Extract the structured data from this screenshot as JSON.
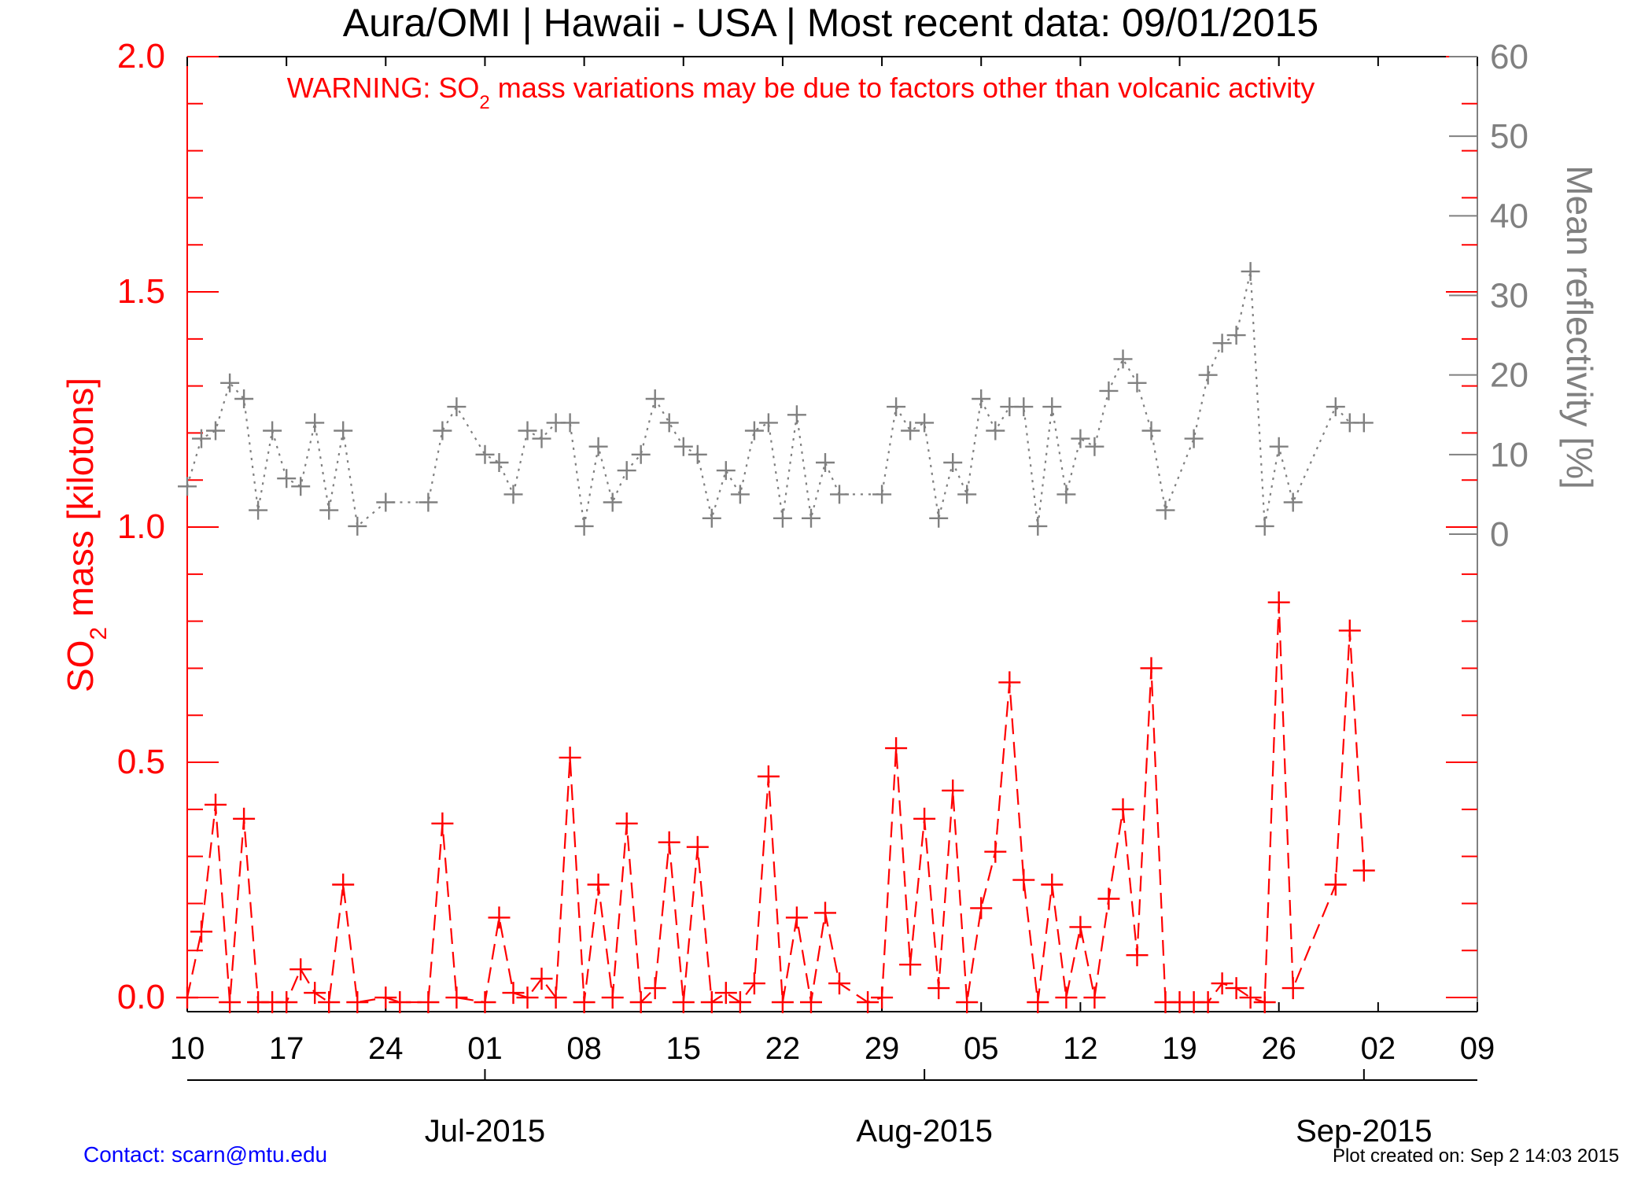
{
  "footer": {
    "contact": "Contact: scarn@mtu.edu",
    "created": "Plot created on: Sep  2 14:03 2015"
  },
  "chart_data": {
    "type": "line",
    "title": "Aura/OMI | Hawaii - USA | Most recent data: 09/01/2015",
    "warning": {
      "prefix": "WARNING: SO",
      "subscript": "2",
      "suffix": " mass variations may be due to factors other than volcanic activity",
      "color": "#ff0000"
    },
    "ylabel_left": {
      "prefix": "SO",
      "subscript": "2",
      "suffix": " mass [kilotons]",
      "color": "#ff0000"
    },
    "ylabel_right": {
      "text": "Mean reflectivity [%]",
      "color": "#808080"
    },
    "x_axis": {
      "range": [
        "2015-06-10",
        "2015-09-09"
      ],
      "ticks": [
        {
          "date": "2015-06-10",
          "label": "10"
        },
        {
          "date": "2015-06-17",
          "label": "17"
        },
        {
          "date": "2015-06-24",
          "label": "24"
        },
        {
          "date": "2015-07-01",
          "label": "01"
        },
        {
          "date": "2015-07-08",
          "label": "08"
        },
        {
          "date": "2015-07-15",
          "label": "15"
        },
        {
          "date": "2015-07-22",
          "label": "22"
        },
        {
          "date": "2015-07-29",
          "label": "29"
        },
        {
          "date": "2015-08-05",
          "label": "05"
        },
        {
          "date": "2015-08-12",
          "label": "12"
        },
        {
          "date": "2015-08-19",
          "label": "19"
        },
        {
          "date": "2015-08-26",
          "label": "26"
        },
        {
          "date": "2015-09-02",
          "label": "02"
        },
        {
          "date": "2015-09-09",
          "label": "09"
        }
      ],
      "months": [
        {
          "date": "2015-07-01",
          "label": "Jul-2015"
        },
        {
          "date": "2015-08-01",
          "label": "Aug-2015"
        },
        {
          "date": "2015-09-01",
          "label": "Sep-2015"
        }
      ]
    },
    "y_left": {
      "range": [
        -0.03,
        2.0
      ],
      "ticks": [
        {
          "v": 0.0,
          "label": "0.0"
        },
        {
          "v": 0.5,
          "label": "0.5"
        },
        {
          "v": 1.0,
          "label": "1.0"
        },
        {
          "v": 1.5,
          "label": "1.5"
        },
        {
          "v": 2.0,
          "label": "2.0"
        }
      ],
      "minor_step": 0.1
    },
    "y_right": {
      "range": [
        -60,
        60
      ],
      "ticks": [
        {
          "v": 0,
          "label": "0"
        },
        {
          "v": 10,
          "label": "10"
        },
        {
          "v": 20,
          "label": "20"
        },
        {
          "v": 30,
          "label": "30"
        },
        {
          "v": 40,
          "label": "40"
        },
        {
          "v": 50,
          "label": "50"
        },
        {
          "v": 60,
          "label": "60"
        }
      ]
    },
    "series": [
      {
        "id": "so2",
        "axis": "left",
        "color": "#ff0000",
        "line_style": "dashed",
        "marker": "+",
        "points": [
          [
            "2015-06-10",
            0.0
          ],
          [
            "2015-06-11",
            0.14
          ],
          [
            "2015-06-12",
            0.41
          ],
          [
            "2015-06-13",
            -0.01
          ],
          [
            "2015-06-14",
            0.38
          ],
          [
            "2015-06-15",
            -0.01
          ],
          [
            "2015-06-16",
            -0.01
          ],
          [
            "2015-06-17",
            -0.01
          ],
          [
            "2015-06-18",
            0.06
          ],
          [
            "2015-06-19",
            0.01
          ],
          [
            "2015-06-20",
            -0.01
          ],
          [
            "2015-06-21",
            0.24
          ],
          [
            "2015-06-22",
            -0.01
          ],
          [
            "2015-06-24",
            0.0
          ],
          [
            "2015-06-25",
            -0.01
          ],
          [
            "2015-06-27",
            -0.01
          ],
          [
            "2015-06-28",
            0.37
          ],
          [
            "2015-06-29",
            0.0
          ],
          [
            "2015-07-01",
            -0.01
          ],
          [
            "2015-07-02",
            0.17
          ],
          [
            "2015-07-03",
            0.01
          ],
          [
            "2015-07-04",
            0.0
          ],
          [
            "2015-07-05",
            0.04
          ],
          [
            "2015-07-06",
            0.0
          ],
          [
            "2015-07-07",
            0.51
          ],
          [
            "2015-07-08",
            -0.01
          ],
          [
            "2015-07-09",
            0.24
          ],
          [
            "2015-07-10",
            0.0
          ],
          [
            "2015-07-11",
            0.37
          ],
          [
            "2015-07-12",
            -0.01
          ],
          [
            "2015-07-13",
            0.02
          ],
          [
            "2015-07-14",
            0.33
          ],
          [
            "2015-07-15",
            -0.01
          ],
          [
            "2015-07-16",
            0.32
          ],
          [
            "2015-07-17",
            -0.01
          ],
          [
            "2015-07-18",
            0.01
          ],
          [
            "2015-07-19",
            -0.01
          ],
          [
            "2015-07-20",
            0.03
          ],
          [
            "2015-07-21",
            0.47
          ],
          [
            "2015-07-22",
            -0.01
          ],
          [
            "2015-07-23",
            0.17
          ],
          [
            "2015-07-24",
            -0.01
          ],
          [
            "2015-07-25",
            0.18
          ],
          [
            "2015-07-26",
            0.03
          ],
          [
            "2015-07-28",
            -0.01
          ],
          [
            "2015-07-29",
            0.0
          ],
          [
            "2015-07-30",
            0.53
          ],
          [
            "2015-07-31",
            0.07
          ],
          [
            "2015-08-01",
            0.38
          ],
          [
            "2015-08-02",
            0.02
          ],
          [
            "2015-08-03",
            0.44
          ],
          [
            "2015-08-04",
            -0.01
          ],
          [
            "2015-08-05",
            0.19
          ],
          [
            "2015-08-06",
            0.31
          ],
          [
            "2015-08-07",
            0.67
          ],
          [
            "2015-08-08",
            0.25
          ],
          [
            "2015-08-09",
            -0.01
          ],
          [
            "2015-08-10",
            0.24
          ],
          [
            "2015-08-11",
            0.0
          ],
          [
            "2015-08-12",
            0.15
          ],
          [
            "2015-08-13",
            0.0
          ],
          [
            "2015-08-14",
            0.21
          ],
          [
            "2015-08-15",
            0.4
          ],
          [
            "2015-08-16",
            0.09
          ],
          [
            "2015-08-17",
            0.7
          ],
          [
            "2015-08-18",
            -0.01
          ],
          [
            "2015-08-19",
            -0.01
          ],
          [
            "2015-08-20",
            -0.01
          ],
          [
            "2015-08-21",
            -0.01
          ],
          [
            "2015-08-22",
            0.03
          ],
          [
            "2015-08-23",
            0.02
          ],
          [
            "2015-08-24",
            0.0
          ],
          [
            "2015-08-25",
            -0.01
          ],
          [
            "2015-08-26",
            0.84
          ],
          [
            "2015-08-27",
            0.02
          ],
          [
            "2015-08-30",
            0.24
          ],
          [
            "2015-08-31",
            0.78
          ],
          [
            "2015-09-01",
            0.27
          ]
        ]
      },
      {
        "id": "reflectivity",
        "axis": "right",
        "color": "#808080",
        "line_style": "dotted",
        "marker": "+",
        "points": [
          [
            "2015-06-10",
            6
          ],
          [
            "2015-06-11",
            12
          ],
          [
            "2015-06-12",
            13
          ],
          [
            "2015-06-13",
            19
          ],
          [
            "2015-06-14",
            17
          ],
          [
            "2015-06-15",
            3
          ],
          [
            "2015-06-16",
            13
          ],
          [
            "2015-06-17",
            7
          ],
          [
            "2015-06-18",
            6
          ],
          [
            "2015-06-19",
            14
          ],
          [
            "2015-06-20",
            3
          ],
          [
            "2015-06-21",
            13
          ],
          [
            "2015-06-22",
            1
          ],
          [
            "2015-06-24",
            4
          ],
          [
            "2015-06-27",
            4
          ],
          [
            "2015-06-28",
            13
          ],
          [
            "2015-06-29",
            16
          ],
          [
            "2015-07-01",
            10
          ],
          [
            "2015-07-02",
            9
          ],
          [
            "2015-07-03",
            5
          ],
          [
            "2015-07-04",
            13
          ],
          [
            "2015-07-05",
            12
          ],
          [
            "2015-07-06",
            14
          ],
          [
            "2015-07-07",
            14
          ],
          [
            "2015-07-08",
            1
          ],
          [
            "2015-07-09",
            11
          ],
          [
            "2015-07-10",
            4
          ],
          [
            "2015-07-11",
            8
          ],
          [
            "2015-07-12",
            10
          ],
          [
            "2015-07-13",
            17
          ],
          [
            "2015-07-14",
            14
          ],
          [
            "2015-07-15",
            11
          ],
          [
            "2015-07-16",
            10
          ],
          [
            "2015-07-17",
            2
          ],
          [
            "2015-07-18",
            8
          ],
          [
            "2015-07-19",
            5
          ],
          [
            "2015-07-20",
            13
          ],
          [
            "2015-07-21",
            14
          ],
          [
            "2015-07-22",
            2
          ],
          [
            "2015-07-23",
            15
          ],
          [
            "2015-07-24",
            2
          ],
          [
            "2015-07-25",
            9
          ],
          [
            "2015-07-26",
            5
          ],
          [
            "2015-07-29",
            5
          ],
          [
            "2015-07-30",
            16
          ],
          [
            "2015-07-31",
            13
          ],
          [
            "2015-08-01",
            14
          ],
          [
            "2015-08-02",
            2
          ],
          [
            "2015-08-03",
            9
          ],
          [
            "2015-08-04",
            5
          ],
          [
            "2015-08-05",
            17
          ],
          [
            "2015-08-06",
            13
          ],
          [
            "2015-08-07",
            16
          ],
          [
            "2015-08-08",
            16
          ],
          [
            "2015-08-09",
            1
          ],
          [
            "2015-08-10",
            16
          ],
          [
            "2015-08-11",
            5
          ],
          [
            "2015-08-12",
            12
          ],
          [
            "2015-08-13",
            11
          ],
          [
            "2015-08-14",
            18
          ],
          [
            "2015-08-15",
            22
          ],
          [
            "2015-08-16",
            19
          ],
          [
            "2015-08-17",
            13
          ],
          [
            "2015-08-18",
            3
          ],
          [
            "2015-08-20",
            12
          ],
          [
            "2015-08-21",
            20
          ],
          [
            "2015-08-22",
            24
          ],
          [
            "2015-08-23",
            25
          ],
          [
            "2015-08-24",
            33
          ],
          [
            "2015-08-25",
            1
          ],
          [
            "2015-08-26",
            11
          ],
          [
            "2015-08-27",
            4
          ],
          [
            "2015-08-30",
            16
          ],
          [
            "2015-08-31",
            14
          ],
          [
            "2015-09-01",
            14
          ]
        ]
      }
    ]
  }
}
